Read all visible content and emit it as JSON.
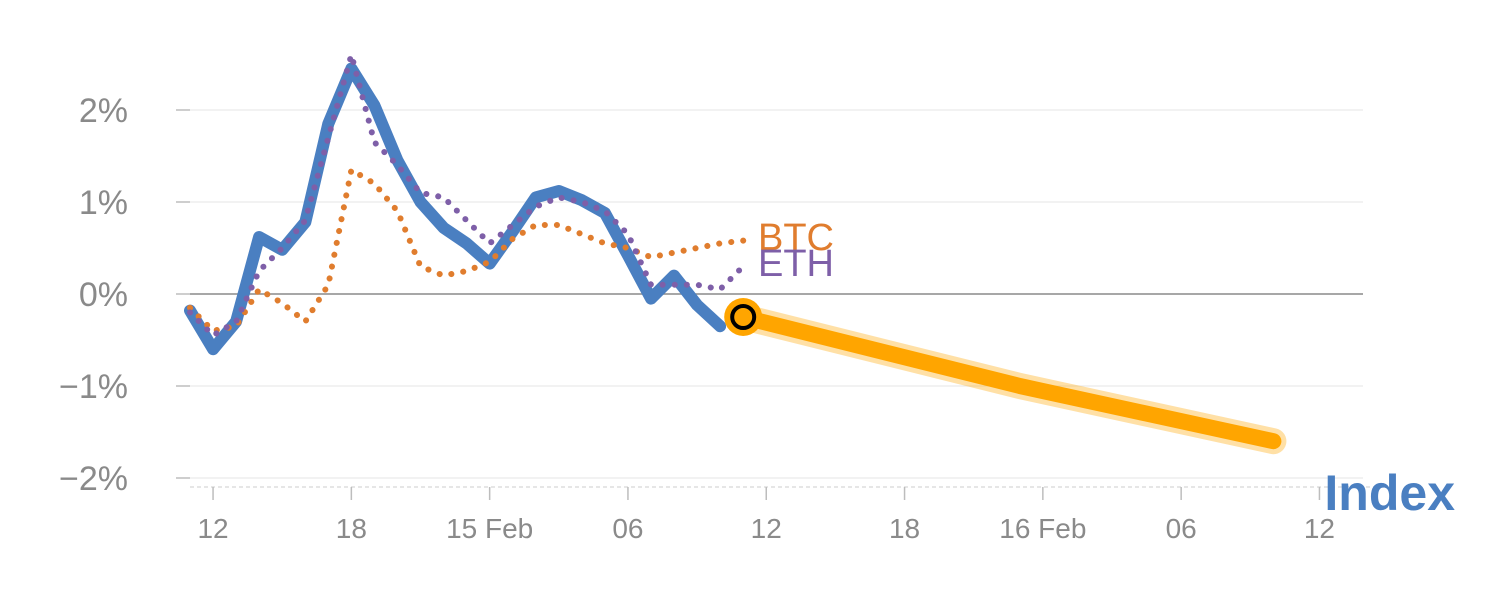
{
  "chart_data": {
    "type": "line",
    "title": "",
    "xlabel": "",
    "ylabel": "",
    "ylim": [
      -2.2,
      2.9
    ],
    "grid": true,
    "x_tick_labels": [
      "12",
      "18",
      "15 Feb",
      "06",
      "12",
      "18",
      "16 Feb",
      "06",
      "12"
    ],
    "y_ticks": [
      2,
      1,
      0,
      -1,
      -2
    ],
    "y_tick_labels": [
      "2%",
      "1%",
      "0%",
      "−1%",
      "−2%"
    ],
    "series": [
      {
        "name": "Index",
        "style": "solid",
        "color": "#4a7fc1",
        "x": [
          0,
          1,
          2,
          3,
          4,
          5,
          6,
          7,
          8,
          9,
          10,
          11,
          12,
          13,
          14,
          15,
          16,
          17,
          18,
          19,
          20,
          21,
          22,
          23
        ],
        "y": [
          -0.18,
          -0.6,
          -0.3,
          0.62,
          0.48,
          0.78,
          1.85,
          2.45,
          2.05,
          1.45,
          1.0,
          0.72,
          0.55,
          0.33,
          0.68,
          1.05,
          1.12,
          1.02,
          0.88,
          0.42,
          -0.05,
          0.2,
          -0.12,
          -0.35
        ]
      },
      {
        "name": "BTC",
        "style": "dotted",
        "color": "#e07d2e",
        "x": [
          0,
          1,
          2,
          3,
          4,
          5,
          6,
          7,
          8,
          9,
          10,
          11,
          12,
          13,
          14,
          15,
          16,
          17,
          18,
          19,
          20,
          21,
          22,
          23,
          24
        ],
        "y": [
          -0.15,
          -0.4,
          -0.35,
          0.05,
          -0.1,
          -0.3,
          0.1,
          1.35,
          1.2,
          0.9,
          0.3,
          0.2,
          0.25,
          0.35,
          0.6,
          0.75,
          0.75,
          0.65,
          0.55,
          0.5,
          0.4,
          0.45,
          0.5,
          0.55,
          0.58
        ]
      },
      {
        "name": "ETH",
        "style": "dotted",
        "color": "#7e5fa8",
        "x": [
          0,
          1,
          2,
          3,
          4,
          5,
          6,
          7,
          8,
          9,
          10,
          11,
          12,
          13,
          14,
          15,
          16,
          17,
          18,
          19,
          20,
          21,
          22,
          23,
          24
        ],
        "y": [
          -0.2,
          -0.45,
          -0.3,
          0.25,
          0.5,
          0.8,
          1.7,
          2.6,
          1.65,
          1.4,
          1.1,
          1.05,
          0.8,
          0.55,
          0.75,
          0.95,
          1.05,
          1.0,
          0.9,
          0.65,
          0.1,
          0.1,
          0.1,
          0.05,
          0.3
        ]
      }
    ],
    "marker": {
      "x": 24,
      "y": -0.25,
      "color": "#ffa500"
    },
    "forecast": {
      "color": "#ffa500",
      "x": [
        24,
        36,
        47
      ],
      "y": [
        -0.25,
        -1.0,
        -1.6
      ]
    },
    "series_labels": [
      "BTC",
      "ETH",
      "Index"
    ]
  }
}
